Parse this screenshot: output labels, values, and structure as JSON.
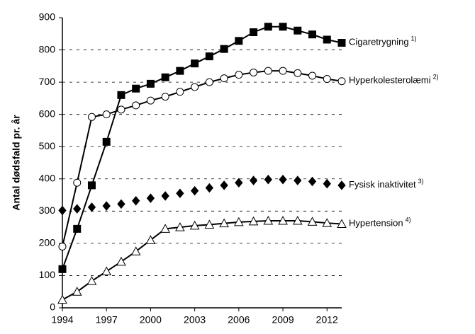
{
  "chart_data": {
    "type": "line",
    "y_label": "Antal dødsfald pr. år",
    "x": [
      1994,
      1995,
      1996,
      1997,
      1998,
      1999,
      2000,
      2001,
      2002,
      2003,
      2004,
      2005,
      2006,
      2007,
      2008,
      2009,
      2010,
      2011,
      2012,
      2013
    ],
    "xlim": [
      1994,
      2013
    ],
    "xticks": [
      1994,
      1997,
      2000,
      2003,
      2006,
      2009,
      2012
    ],
    "ylim": [
      0,
      900
    ],
    "yticks": [
      0,
      100,
      200,
      300,
      400,
      500,
      600,
      700,
      800,
      900
    ],
    "grid": true,
    "series": [
      {
        "name": "Cigaretrygning",
        "superscript": "1)",
        "color": "#000000",
        "marker": "square",
        "line": true,
        "values": [
          120,
          245,
          380,
          515,
          660,
          680,
          695,
          715,
          735,
          758,
          780,
          803,
          828,
          855,
          872,
          872,
          860,
          848,
          832,
          822
        ]
      },
      {
        "name": "Hyperkolesterolæmi",
        "superscript": "2)",
        "color": "#000000",
        "marker": "circle",
        "line": true,
        "values": [
          190,
          388,
          592,
          600,
          615,
          628,
          643,
          655,
          670,
          685,
          700,
          712,
          723,
          730,
          735,
          735,
          728,
          720,
          710,
          703
        ]
      },
      {
        "name": "Fysisk inaktivitet",
        "superscript": "3)",
        "color": "#000000",
        "marker": "diamond",
        "line": false,
        "values": [
          302,
          307,
          312,
          316,
          322,
          332,
          340,
          347,
          355,
          363,
          372,
          380,
          388,
          395,
          398,
          398,
          395,
          392,
          385,
          380
        ]
      },
      {
        "name": "Hypertension",
        "superscript": "4)",
        "color": "#000000",
        "marker": "triangle",
        "line": true,
        "values": [
          25,
          50,
          83,
          113,
          143,
          175,
          210,
          245,
          250,
          255,
          258,
          262,
          266,
          268,
          270,
          270,
          270,
          267,
          263,
          260
        ]
      }
    ]
  }
}
